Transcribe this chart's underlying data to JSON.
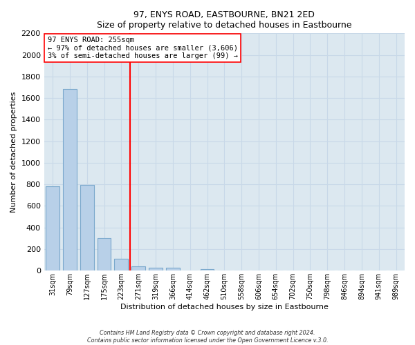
{
  "title": "97, ENYS ROAD, EASTBOURNE, BN21 2ED",
  "subtitle": "Size of property relative to detached houses in Eastbourne",
  "xlabel": "Distribution of detached houses by size in Eastbourne",
  "ylabel": "Number of detached properties",
  "bar_labels": [
    "31sqm",
    "79sqm",
    "127sqm",
    "175sqm",
    "223sqm",
    "271sqm",
    "319sqm",
    "366sqm",
    "414sqm",
    "462sqm",
    "510sqm",
    "558sqm",
    "606sqm",
    "654sqm",
    "702sqm",
    "750sqm",
    "798sqm",
    "846sqm",
    "894sqm",
    "941sqm",
    "989sqm"
  ],
  "bar_values": [
    780,
    1685,
    795,
    300,
    110,
    40,
    25,
    25,
    0,
    15,
    0,
    0,
    0,
    0,
    0,
    0,
    0,
    0,
    0,
    0,
    0
  ],
  "bar_color": "#b8d0e8",
  "bar_edge_color": "#7aa8cc",
  "vline_x": 4.5,
  "vline_color": "red",
  "annotation_title": "97 ENYS ROAD: 255sqm",
  "annotation_line1": "← 97% of detached houses are smaller (3,606)",
  "annotation_line2": "3% of semi-detached houses are larger (99) →",
  "box_facecolor": "white",
  "box_edgecolor": "red",
  "ylim": [
    0,
    2200
  ],
  "yticks": [
    0,
    200,
    400,
    600,
    800,
    1000,
    1200,
    1400,
    1600,
    1800,
    2000,
    2200
  ],
  "footer1": "Contains HM Land Registry data © Crown copyright and database right 2024.",
  "footer2": "Contains public sector information licensed under the Open Government Licence v.3.0.",
  "grid_color": "#c8d8e8",
  "background_color": "#dce8f0"
}
